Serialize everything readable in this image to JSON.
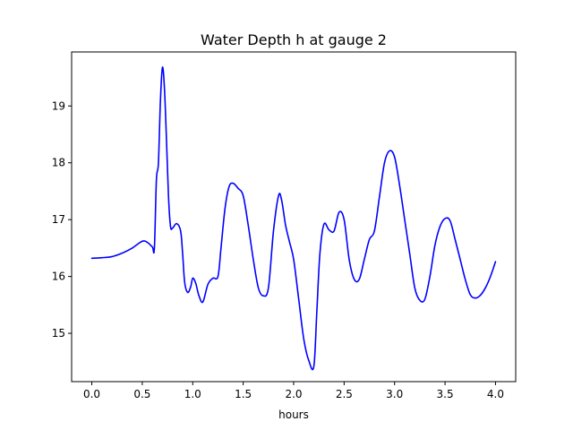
{
  "chart_data": {
    "type": "line",
    "title": "Water Depth h at gauge 2",
    "xlabel": "hours",
    "ylabel": "",
    "xlim": [
      -0.2,
      4.2
    ],
    "ylim": [
      14.15,
      19.95
    ],
    "xticks": [
      0.0,
      0.5,
      1.0,
      1.5,
      2.0,
      2.5,
      3.0,
      3.5,
      4.0
    ],
    "xtick_labels": [
      "0.0",
      "0.5",
      "1.0",
      "1.5",
      "2.0",
      "2.5",
      "3.0",
      "3.5",
      "4.0"
    ],
    "yticks": [
      15,
      16,
      17,
      18,
      19
    ],
    "ytick_labels": [
      "15",
      "16",
      "17",
      "18",
      "19"
    ],
    "grid": false,
    "legend": "none",
    "series": [
      {
        "color": "#0000ff",
        "x": [
          0.0,
          0.1,
          0.2,
          0.3,
          0.4,
          0.5,
          0.55,
          0.6,
          0.62,
          0.64,
          0.66,
          0.68,
          0.7,
          0.72,
          0.74,
          0.76,
          0.78,
          0.8,
          0.84,
          0.88,
          0.9,
          0.92,
          0.95,
          0.98,
          1.0,
          1.03,
          1.06,
          1.1,
          1.15,
          1.2,
          1.25,
          1.28,
          1.32,
          1.36,
          1.4,
          1.45,
          1.5,
          1.55,
          1.6,
          1.65,
          1.7,
          1.75,
          1.8,
          1.85,
          1.88,
          1.92,
          1.96,
          2.0,
          2.05,
          2.1,
          2.15,
          2.2,
          2.23,
          2.26,
          2.3,
          2.35,
          2.4,
          2.45,
          2.5,
          2.55,
          2.6,
          2.65,
          2.7,
          2.75,
          2.8,
          2.85,
          2.9,
          2.95,
          3.0,
          3.05,
          3.1,
          3.15,
          3.2,
          3.25,
          3.3,
          3.35,
          3.4,
          3.45,
          3.5,
          3.55,
          3.6,
          3.65,
          3.7,
          3.75,
          3.8,
          3.85,
          3.9,
          3.95,
          4.0
        ],
        "y": [
          16.32,
          16.33,
          16.35,
          16.41,
          16.5,
          16.62,
          16.6,
          16.52,
          16.5,
          17.7,
          18.0,
          19.1,
          19.68,
          19.3,
          18.4,
          17.4,
          16.88,
          16.85,
          16.93,
          16.8,
          16.4,
          15.9,
          15.72,
          15.82,
          15.97,
          15.88,
          15.67,
          15.55,
          15.86,
          15.97,
          16.0,
          16.5,
          17.2,
          17.58,
          17.64,
          17.55,
          17.42,
          16.9,
          16.3,
          15.8,
          15.66,
          15.8,
          16.8,
          17.42,
          17.35,
          16.9,
          16.6,
          16.3,
          15.6,
          14.9,
          14.52,
          14.42,
          15.4,
          16.4,
          16.92,
          16.82,
          16.8,
          17.13,
          17.0,
          16.3,
          15.95,
          15.95,
          16.3,
          16.65,
          16.8,
          17.4,
          18.0,
          18.21,
          18.1,
          17.6,
          17.0,
          16.4,
          15.8,
          15.58,
          15.6,
          16.0,
          16.55,
          16.88,
          17.02,
          16.98,
          16.65,
          16.3,
          15.95,
          15.68,
          15.62,
          15.67,
          15.8,
          16.0,
          16.26
        ]
      }
    ]
  }
}
